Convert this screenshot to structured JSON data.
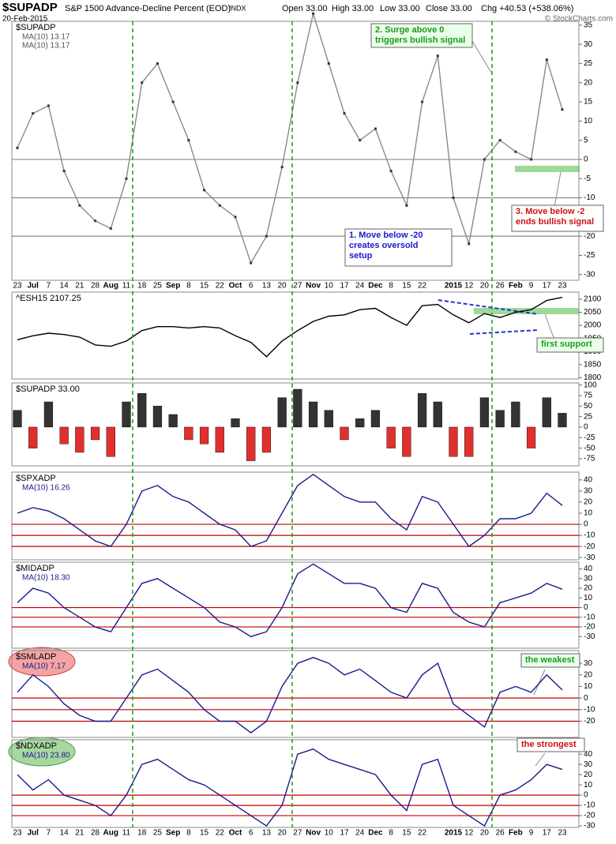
{
  "chart_data": [
    {
      "type": "line",
      "title": "$SUPADP",
      "subtitle": "S&P 1500 Advance-Decline Percent (EOD)",
      "exchange": "INDX",
      "date": "20-Feb-2015",
      "quote": [
        "Open 33.00",
        "High 33.00",
        "Low 33.00",
        "Close 33.00",
        "Chg +40.53 (+538.06%)"
      ],
      "credit": "© StockCharts.com",
      "label": "$SUPADP",
      "legend": [
        "MA(10) 13.17",
        "MA(10) 13.17"
      ],
      "categories": [
        "23",
        "Jul",
        "7",
        "14",
        "21",
        "28",
        "Aug",
        "11",
        "18",
        "25",
        "Sep",
        "8",
        "15",
        "22",
        "Oct",
        "6",
        "13",
        "20",
        "27",
        "Nov",
        "10",
        "17",
        "24",
        "Dec",
        "8",
        "15",
        "22",
        null,
        "2015",
        "12",
        "20",
        "26",
        "Feb",
        "9",
        "17",
        "23"
      ],
      "series": [
        {
          "name": "$SUPADP",
          "color": "#8a8a8a",
          "values": [
            3,
            12,
            14,
            -3,
            -12,
            -16,
            -18,
            -5,
            20,
            25,
            15,
            5,
            -8,
            -12,
            -15,
            -27,
            -20,
            -2,
            20,
            38,
            25,
            12,
            5,
            8,
            -3,
            -12,
            15,
            27,
            -10,
            -22,
            0,
            5,
            2,
            0,
            26,
            13
          ]
        }
      ],
      "ylim": [
        -31.5,
        36
      ],
      "yticks": [
        35,
        30,
        25,
        20,
        15,
        10,
        5,
        0,
        -5,
        -10,
        -15,
        -20,
        -25,
        -30
      ],
      "hlines": [
        0,
        -10,
        -20
      ],
      "hline_color": "#8a8a8a",
      "markers": true,
      "annotations": [
        [
          "2. Surge above 0",
          "triggers bullish signal"
        ],
        [
          "3. Move below -2",
          "ends bullish signal"
        ],
        [
          "1. Move below -20",
          "creates oversold",
          "setup"
        ]
      ]
    },
    {
      "type": "line",
      "label": "^ESH15 2107.25",
      "series": [
        {
          "name": "^ESH15",
          "color": "#000000",
          "values": [
            1945,
            1960,
            1970,
            1965,
            1955,
            1925,
            1920,
            1940,
            1980,
            1995,
            1995,
            1990,
            1995,
            1990,
            1960,
            1935,
            1880,
            1940,
            1980,
            2015,
            2035,
            2040,
            2060,
            2065,
            2030,
            2000,
            2075,
            2080,
            2040,
            2010,
            2045,
            2030,
            2050,
            2060,
            2095,
            2107
          ]
        }
      ],
      "ylim": [
        1795,
        2127
      ],
      "yticks": [
        2100,
        2050,
        2000,
        1950,
        1900,
        1850,
        1800
      ],
      "annotations": [
        [
          "first support"
        ]
      ]
    },
    {
      "type": "bar",
      "label": "$SUPADP 33.00",
      "pos_color": "#333333",
      "neg_color": "#e0302e",
      "series": [
        {
          "name": "$SUPADP",
          "values": [
            40,
            -50,
            60,
            -40,
            -60,
            -30,
            -70,
            60,
            80,
            50,
            30,
            -30,
            -40,
            -60,
            20,
            -80,
            -60,
            70,
            90,
            60,
            40,
            -30,
            20,
            40,
            -50,
            -70,
            80,
            60,
            -70,
            -70,
            70,
            40,
            60,
            -50,
            70,
            33
          ]
        }
      ],
      "ylim": [
        -92,
        105
      ],
      "yticks": [
        100,
        75,
        50,
        25,
        0,
        -25,
        -50,
        -75
      ]
    },
    {
      "type": "line",
      "label": "$SPXADP",
      "legend": [
        "MA(10) 16.26"
      ],
      "series": [
        {
          "name": "$SPXADP",
          "color": "#1a1a8c",
          "values": [
            10,
            15,
            12,
            5,
            -5,
            -15,
            -20,
            0,
            30,
            35,
            25,
            20,
            10,
            0,
            -5,
            -20,
            -15,
            10,
            35,
            45,
            35,
            25,
            20,
            20,
            5,
            -5,
            25,
            20,
            0,
            -20,
            -10,
            5,
            5,
            10,
            28,
            17
          ]
        }
      ],
      "ylim": [
        -32,
        47
      ],
      "yticks": [
        40,
        30,
        20,
        10,
        0,
        -10,
        -20,
        -30
      ],
      "hlines": [
        0,
        -10,
        -20
      ],
      "hline_color": "#c00000"
    },
    {
      "type": "line",
      "label": "$MIDADP",
      "legend": [
        "MA(10) 18.30"
      ],
      "series": [
        {
          "name": "$MIDADP",
          "color": "#1a1a8c",
          "values": [
            5,
            20,
            15,
            0,
            -10,
            -20,
            -25,
            0,
            25,
            30,
            20,
            10,
            0,
            -15,
            -20,
            -30,
            -25,
            0,
            35,
            45,
            35,
            25,
            25,
            20,
            0,
            -5,
            25,
            20,
            -5,
            -15,
            -20,
            5,
            10,
            15,
            25,
            19
          ]
        }
      ],
      "ylim": [
        -42,
        47
      ],
      "yticks": [
        40,
        30,
        20,
        10,
        0,
        -10,
        -20,
        -30
      ],
      "hlines": [
        0,
        -10,
        -20
      ],
      "hline_color": "#c00000"
    },
    {
      "type": "line",
      "label": "$SMLADP",
      "legend": [
        "MA(10) 7.17"
      ],
      "series": [
        {
          "name": "$SMLADP",
          "color": "#1a1a8c",
          "values": [
            5,
            20,
            10,
            -5,
            -15,
            -20,
            -20,
            0,
            20,
            25,
            15,
            5,
            -10,
            -20,
            -20,
            -30,
            -20,
            10,
            30,
            35,
            30,
            20,
            25,
            15,
            5,
            0,
            20,
            30,
            -5,
            -15,
            -25,
            5,
            10,
            5,
            20,
            7
          ]
        }
      ],
      "ylim": [
        -34,
        41
      ],
      "yticks": [
        30,
        20,
        10,
        0,
        -10,
        -20
      ],
      "hlines": [
        0,
        -10,
        -20
      ],
      "hline_color": "#c00000",
      "annotations": [
        [
          "the weakest"
        ]
      ]
    },
    {
      "type": "line",
      "label": "$NDXADP",
      "legend": [
        "MA(10) 23.80"
      ],
      "categories": [
        "23",
        "Jul",
        "7",
        "14",
        "21",
        "28",
        "Aug",
        "11",
        "18",
        "25",
        "Sep",
        "8",
        "15",
        "22",
        "Oct",
        "6",
        "13",
        "20",
        "27",
        "Nov",
        "10",
        "17",
        "24",
        "Dec",
        "8",
        "15",
        "22",
        null,
        "2015",
        "12",
        "20",
        "26",
        "Feb",
        "9",
        "17",
        "23"
      ],
      "series": [
        {
          "name": "$NDXADP",
          "color": "#1a1a8c",
          "values": [
            20,
            5,
            15,
            0,
            -5,
            -10,
            -20,
            0,
            30,
            35,
            25,
            15,
            10,
            0,
            -10,
            -20,
            -30,
            -10,
            40,
            45,
            35,
            30,
            25,
            20,
            0,
            -15,
            30,
            35,
            -10,
            -20,
            -30,
            0,
            5,
            15,
            30,
            25
          ]
        }
      ],
      "ylim": [
        -31.5,
        54
      ],
      "yticks": [
        40,
        30,
        20,
        10,
        0,
        -10,
        -20,
        -30
      ],
      "hlines": [
        0,
        -10,
        -20
      ],
      "hline_color": "#c00000",
      "annotations": [
        [
          "the strongest"
        ]
      ]
    }
  ]
}
